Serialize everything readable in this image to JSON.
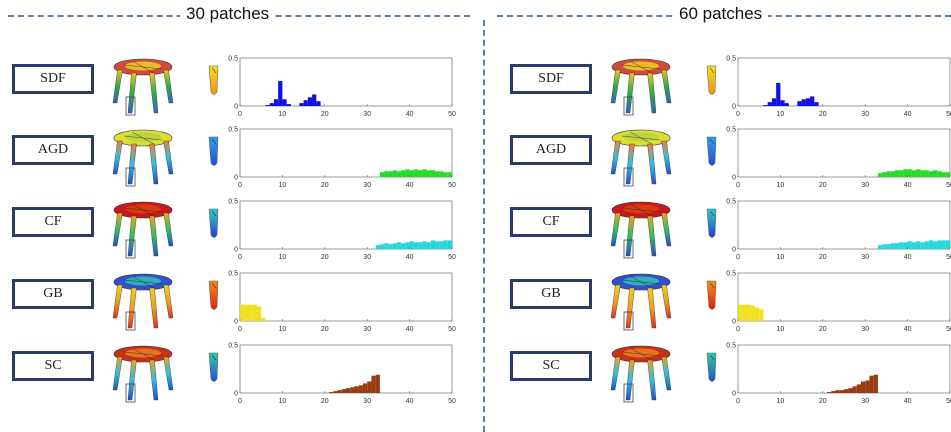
{
  "panels": [
    {
      "title": "30 patches",
      "rows": [
        {
          "label": "SDF",
          "color": "#1010e0",
          "table": {
            "top": "#d24a3c",
            "mid": "#f0d020",
            "legs": [
              "#3060d0",
              "#28b040",
              "#f0c020"
            ]
          },
          "part": [
            "#f5e020",
            "#f09010"
          ],
          "bars": [
            [
              7,
              0.01
            ],
            [
              8,
              0.03
            ],
            [
              9,
              0.07
            ],
            [
              10,
              0.26
            ],
            [
              11,
              0.07
            ],
            [
              12,
              0.02
            ],
            [
              15,
              0.03
            ],
            [
              16,
              0.06
            ],
            [
              17,
              0.09
            ],
            [
              18,
              0.12
            ],
            [
              19,
              0.05
            ]
          ]
        },
        {
          "label": "AGD",
          "color": "#22dd22",
          "table": {
            "top": "#d8e030",
            "mid": "#b8d040",
            "legs": [
              "#2050d0",
              "#30c0e0",
              "#f08040"
            ]
          },
          "part": [
            "#30a0f0",
            "#2050d0"
          ],
          "bars": [
            [
              34,
              0.05
            ],
            [
              35,
              0.06
            ],
            [
              36,
              0.06
            ],
            [
              37,
              0.07
            ],
            [
              38,
              0.06
            ],
            [
              39,
              0.07
            ],
            [
              40,
              0.08
            ],
            [
              41,
              0.07
            ],
            [
              42,
              0.08
            ],
            [
              43,
              0.07
            ],
            [
              44,
              0.08
            ],
            [
              45,
              0.07
            ],
            [
              46,
              0.07
            ],
            [
              47,
              0.06
            ],
            [
              48,
              0.06
            ],
            [
              49,
              0.05
            ],
            [
              50,
              0.05
            ]
          ]
        },
        {
          "label": "CF",
          "color": "#22d8e0",
          "table": {
            "top": "#c81818",
            "mid": "#e04010",
            "legs": [
              "#2050d0",
              "#30c060",
              "#f0a020"
            ]
          },
          "part": [
            "#30d0c0",
            "#2040d0"
          ],
          "bars": [
            [
              33,
              0.04
            ],
            [
              34,
              0.05
            ],
            [
              35,
              0.06
            ],
            [
              36,
              0.05
            ],
            [
              37,
              0.06
            ],
            [
              38,
              0.07
            ],
            [
              39,
              0.06
            ],
            [
              40,
              0.07
            ],
            [
              41,
              0.08
            ],
            [
              42,
              0.07
            ],
            [
              43,
              0.07
            ],
            [
              44,
              0.08
            ],
            [
              45,
              0.07
            ],
            [
              46,
              0.09
            ],
            [
              47,
              0.08
            ],
            [
              48,
              0.08
            ],
            [
              49,
              0.09
            ],
            [
              50,
              0.09
            ]
          ]
        },
        {
          "label": "GB",
          "color": "#f0e020",
          "table": {
            "top": "#3050d0",
            "mid": "#30c0b0",
            "legs": [
              "#e03020",
              "#f0a020",
              "#e8d020"
            ]
          },
          "part": [
            "#f09020",
            "#e02010"
          ],
          "bars": [
            [
              1,
              0.17
            ],
            [
              2,
              0.17
            ],
            [
              3,
              0.17
            ],
            [
              4,
              0.17
            ],
            [
              5,
              0.15
            ],
            [
              6,
              0.03
            ]
          ]
        },
        {
          "label": "SC",
          "color": "#9a3a10",
          "table": {
            "top": "#c83018",
            "mid": "#f08020",
            "legs": [
              "#2050d0",
              "#30c0e0",
              "#f0a020"
            ]
          },
          "part": [
            "#30d0a0",
            "#2050d0"
          ],
          "bars": [
            [
              22,
              0.01
            ],
            [
              23,
              0.02
            ],
            [
              24,
              0.03
            ],
            [
              25,
              0.04
            ],
            [
              26,
              0.05
            ],
            [
              27,
              0.06
            ],
            [
              28,
              0.07
            ],
            [
              29,
              0.08
            ],
            [
              30,
              0.1
            ],
            [
              31,
              0.12
            ],
            [
              32,
              0.18
            ],
            [
              33,
              0.19
            ]
          ]
        }
      ]
    },
    {
      "title": "60 patches",
      "rows": [
        {
          "label": "SDF",
          "color": "#1010e0",
          "table": {
            "top": "#d24a3c",
            "mid": "#f0d020",
            "legs": [
              "#3060d0",
              "#28b040",
              "#f0c020"
            ]
          },
          "part": [
            "#f5e020",
            "#f09010"
          ],
          "bars": [
            [
              7,
              0.01
            ],
            [
              8,
              0.04
            ],
            [
              9,
              0.08
            ],
            [
              10,
              0.24
            ],
            [
              11,
              0.06
            ],
            [
              12,
              0.03
            ],
            [
              15,
              0.05
            ],
            [
              16,
              0.07
            ],
            [
              17,
              0.08
            ],
            [
              18,
              0.1
            ],
            [
              19,
              0.04
            ]
          ]
        },
        {
          "label": "AGD",
          "color": "#22dd22",
          "table": {
            "top": "#d8e030",
            "mid": "#b8d040",
            "legs": [
              "#2050d0",
              "#30c0e0",
              "#f08040"
            ]
          },
          "part": [
            "#30a0f0",
            "#2050d0"
          ],
          "bars": [
            [
              34,
              0.04
            ],
            [
              35,
              0.05
            ],
            [
              36,
              0.06
            ],
            [
              37,
              0.06
            ],
            [
              38,
              0.07
            ],
            [
              39,
              0.07
            ],
            [
              40,
              0.08
            ],
            [
              41,
              0.08
            ],
            [
              42,
              0.07
            ],
            [
              43,
              0.08
            ],
            [
              44,
              0.07
            ],
            [
              45,
              0.07
            ],
            [
              46,
              0.06
            ],
            [
              47,
              0.07
            ],
            [
              48,
              0.06
            ],
            [
              49,
              0.05
            ],
            [
              50,
              0.05
            ]
          ]
        },
        {
          "label": "CF",
          "color": "#22d8e0",
          "table": {
            "top": "#c81818",
            "mid": "#e04010",
            "legs": [
              "#2050d0",
              "#30c060",
              "#f0a020"
            ]
          },
          "part": [
            "#30d0c0",
            "#2040d0"
          ],
          "bars": [
            [
              34,
              0.04
            ],
            [
              35,
              0.05
            ],
            [
              36,
              0.05
            ],
            [
              37,
              0.06
            ],
            [
              38,
              0.06
            ],
            [
              39,
              0.07
            ],
            [
              40,
              0.07
            ],
            [
              41,
              0.08
            ],
            [
              42,
              0.07
            ],
            [
              43,
              0.08
            ],
            [
              44,
              0.07
            ],
            [
              45,
              0.08
            ],
            [
              46,
              0.09
            ],
            [
              47,
              0.08
            ],
            [
              48,
              0.09
            ],
            [
              49,
              0.09
            ],
            [
              50,
              0.09
            ]
          ]
        },
        {
          "label": "GB",
          "color": "#f0e020",
          "table": {
            "top": "#3050d0",
            "mid": "#30c0b0",
            "legs": [
              "#e03020",
              "#f0a020",
              "#e8d020"
            ]
          },
          "part": [
            "#f09020",
            "#e02010"
          ],
          "bars": [
            [
              1,
              0.17
            ],
            [
              2,
              0.17
            ],
            [
              3,
              0.17
            ],
            [
              4,
              0.16
            ],
            [
              5,
              0.14
            ],
            [
              6,
              0.12
            ]
          ]
        },
        {
          "label": "SC",
          "color": "#9a3a10",
          "table": {
            "top": "#c83018",
            "mid": "#f08020",
            "legs": [
              "#2050d0",
              "#30c0e0",
              "#f0a020"
            ]
          },
          "part": [
            "#30d0a0",
            "#2050d0"
          ],
          "bars": [
            [
              22,
              0.01
            ],
            [
              23,
              0.02
            ],
            [
              24,
              0.03
            ],
            [
              25,
              0.03
            ],
            [
              26,
              0.04
            ],
            [
              27,
              0.05
            ],
            [
              28,
              0.07
            ],
            [
              29,
              0.09
            ],
            [
              30,
              0.12
            ],
            [
              31,
              0.13
            ],
            [
              32,
              0.18
            ],
            [
              33,
              0.19
            ]
          ]
        }
      ]
    }
  ],
  "chart_axes": {
    "x_ticks": [
      "0",
      "10",
      "20",
      "30",
      "40",
      "50"
    ],
    "y_ticks": [
      "0",
      "0.5"
    ],
    "xlim": [
      0,
      50
    ],
    "ylim": [
      0,
      0.5
    ]
  }
}
